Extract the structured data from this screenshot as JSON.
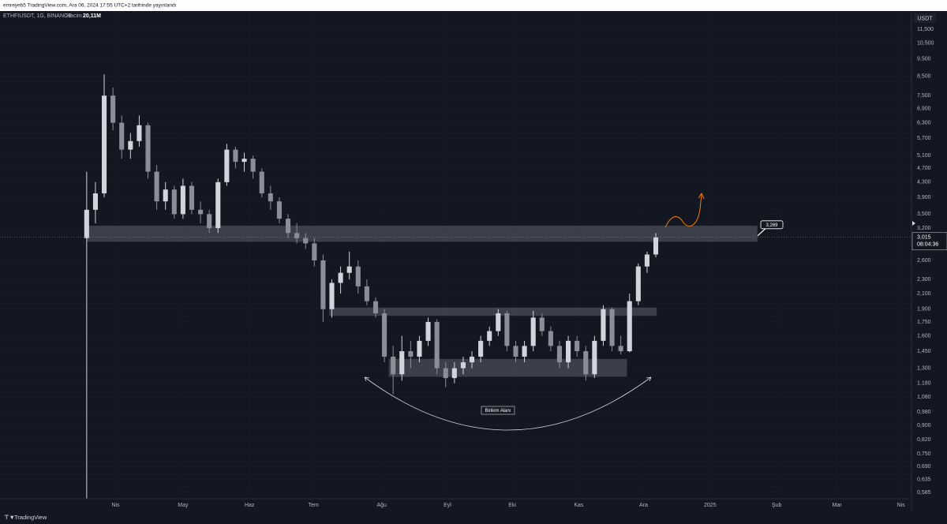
{
  "header": "emreyeb5 TradingView.com, Ara 06, 2024 17:55 UTC+2 tarihinde yayınlandı",
  "footer": "TradingView",
  "chart_data": {
    "type": "candlestick",
    "symbol": "ETHFIUSDT, 1G, BINANCE",
    "volume_label": "Hacim",
    "volume": "20,11M",
    "currency": "USDT",
    "log_scale": true,
    "grid": true,
    "up_color": "#d1d4dc",
    "down_color": "#8a8e99",
    "zone_color": "#5d606b",
    "open": [
      3.0,
      3.6,
      4.0,
      7.5,
      6.3,
      5.3,
      5.6,
      6.2,
      4.6,
      3.8,
      4.1,
      3.5,
      4.2,
      3.6,
      3.5,
      3.2,
      4.3,
      5.3,
      4.9,
      5.0,
      4.6,
      4.0,
      3.8,
      3.4,
      3.1,
      3.0,
      2.9,
      2.6,
      1.9,
      2.25,
      2.4,
      2.5,
      2.2,
      2.0,
      1.85,
      1.4,
      1.25,
      1.45,
      1.4,
      1.55,
      1.75,
      1.3,
      1.22,
      1.3,
      1.35,
      1.4,
      1.55,
      1.65,
      1.85,
      1.5,
      1.4,
      1.5,
      1.8,
      1.65,
      1.5,
      1.35,
      1.55,
      1.45,
      1.25,
      1.55,
      1.9,
      1.5,
      1.45,
      2.0,
      2.5,
      2.7
    ],
    "high": [
      4.6,
      4.3,
      8.6,
      7.9,
      6.6,
      5.9,
      6.6,
      6.3,
      4.8,
      4.3,
      4.2,
      4.4,
      4.3,
      3.8,
      3.6,
      4.4,
      5.5,
      5.4,
      5.2,
      5.1,
      4.7,
      4.2,
      3.9,
      3.5,
      3.3,
      3.1,
      3.0,
      2.7,
      2.3,
      2.5,
      2.75,
      2.6,
      2.3,
      2.05,
      1.9,
      1.5,
      1.6,
      1.55,
      1.6,
      1.8,
      1.78,
      1.35,
      1.35,
      1.4,
      1.45,
      1.6,
      1.7,
      1.9,
      1.88,
      1.55,
      1.55,
      1.88,
      1.85,
      1.7,
      1.55,
      1.6,
      1.6,
      1.5,
      1.6,
      1.95,
      1.92,
      1.6,
      2.1,
      2.55,
      2.75,
      3.1
    ],
    "low": [
      0.5,
      3.3,
      3.9,
      6.0,
      5.0,
      5.0,
      5.4,
      4.4,
      3.6,
      3.6,
      3.4,
      3.4,
      3.5,
      3.3,
      3.1,
      3.1,
      4.2,
      4.7,
      4.6,
      4.4,
      3.9,
      3.6,
      3.3,
      3.0,
      2.9,
      2.8,
      2.5,
      1.75,
      1.8,
      2.1,
      2.3,
      2.1,
      1.95,
      1.8,
      1.35,
      1.1,
      1.2,
      1.3,
      1.35,
      1.5,
      1.25,
      1.15,
      1.18,
      1.25,
      1.3,
      1.35,
      1.5,
      1.6,
      1.45,
      1.35,
      1.35,
      1.45,
      1.6,
      1.45,
      1.3,
      1.3,
      1.4,
      1.2,
      1.22,
      1.5,
      1.45,
      1.42,
      1.44,
      1.95,
      2.4,
      2.65
    ],
    "close": [
      3.6,
      4.0,
      7.5,
      6.3,
      5.3,
      5.6,
      6.2,
      4.6,
      3.8,
      4.1,
      3.5,
      4.2,
      3.6,
      3.5,
      3.2,
      4.3,
      5.3,
      4.9,
      5.0,
      4.6,
      4.0,
      3.8,
      3.4,
      3.1,
      3.0,
      2.9,
      2.6,
      1.9,
      2.25,
      2.4,
      2.5,
      2.2,
      2.0,
      1.85,
      1.4,
      1.25,
      1.45,
      1.4,
      1.55,
      1.75,
      1.3,
      1.22,
      1.3,
      1.35,
      1.4,
      1.55,
      1.65,
      1.85,
      1.5,
      1.4,
      1.5,
      1.8,
      1.65,
      1.5,
      1.35,
      1.55,
      1.45,
      1.25,
      1.55,
      1.9,
      1.5,
      1.45,
      2.0,
      2.5,
      2.7,
      3.015
    ],
    "xlim": [
      -9.9,
      94.2
    ],
    "xticks": [
      {
        "value": 3.3,
        "label": "Nis"
      },
      {
        "value": 11.0,
        "label": "May"
      },
      {
        "value": 18.6,
        "label": "Haz"
      },
      {
        "value": 25.9,
        "label": "Tem"
      },
      {
        "value": 33.7,
        "label": "Ağu"
      },
      {
        "value": 41.2,
        "label": "Eyl"
      },
      {
        "value": 48.6,
        "label": "Eki"
      },
      {
        "value": 56.2,
        "label": "Kas"
      },
      {
        "value": 63.6,
        "label": "Ara"
      },
      {
        "value": 71.2,
        "label": "2025"
      },
      {
        "value": 78.8,
        "label": "Şub"
      },
      {
        "value": 85.7,
        "label": "Mar"
      },
      {
        "value": 93.0,
        "label": "Nis"
      }
    ],
    "ylim": [
      0.5615,
      12.92
    ],
    "yticks": [
      {
        "value": 11.5,
        "label": "11,500"
      },
      {
        "value": 10.5,
        "label": "10,500"
      },
      {
        "value": 9.5,
        "label": "9,500"
      },
      {
        "value": 8.5,
        "label": "8,500"
      },
      {
        "value": 7.5,
        "label": "7,500"
      },
      {
        "value": 6.9,
        "label": "6,900"
      },
      {
        "value": 6.3,
        "label": "6,300"
      },
      {
        "value": 5.7,
        "label": "5,700"
      },
      {
        "value": 5.1,
        "label": "5,100"
      },
      {
        "value": 4.7,
        "label": "4,700"
      },
      {
        "value": 4.3,
        "label": "4,300"
      },
      {
        "value": 3.9,
        "label": "3,900"
      },
      {
        "value": 3.5,
        "label": "3,500"
      },
      {
        "value": 3.2,
        "label": "3,200"
      },
      {
        "value": 2.6,
        "label": "2,600"
      },
      {
        "value": 2.3,
        "label": "2,300"
      },
      {
        "value": 2.1,
        "label": "2,100"
      },
      {
        "value": 1.9,
        "label": "1,900"
      },
      {
        "value": 1.75,
        "label": "1,750"
      },
      {
        "value": 1.6,
        "label": "1,600"
      },
      {
        "value": 1.45,
        "label": "1,450"
      },
      {
        "value": 1.3,
        "label": "1,300"
      },
      {
        "value": 1.18,
        "label": "1,180"
      },
      {
        "value": 1.08,
        "label": "1,080"
      },
      {
        "value": 0.98,
        "label": "0,980"
      },
      {
        "value": 0.9,
        "label": "0,900"
      },
      {
        "value": 0.82,
        "label": "0,820"
      },
      {
        "value": 0.75,
        "label": "0,750"
      },
      {
        "value": 0.69,
        "label": "0,690"
      },
      {
        "value": 0.635,
        "label": "0,635"
      },
      {
        "value": 0.585,
        "label": "0,585"
      }
    ],
    "zones": [
      {
        "from": 2.93,
        "to": 3.25,
        "start": 0,
        "end": 76.6
      },
      {
        "from": 1.82,
        "to": 1.92,
        "start": 27.7,
        "end": 65.1
      },
      {
        "from": 1.23,
        "to": 1.38,
        "start": 34.5,
        "end": 61.7
      }
    ],
    "last_price": {
      "value": 3.015,
      "label": "3,015"
    },
    "countdown": "08:04:36",
    "callout": {
      "value": 3.269,
      "label": "3,269"
    },
    "annotation": "Birikim Alanı"
  }
}
